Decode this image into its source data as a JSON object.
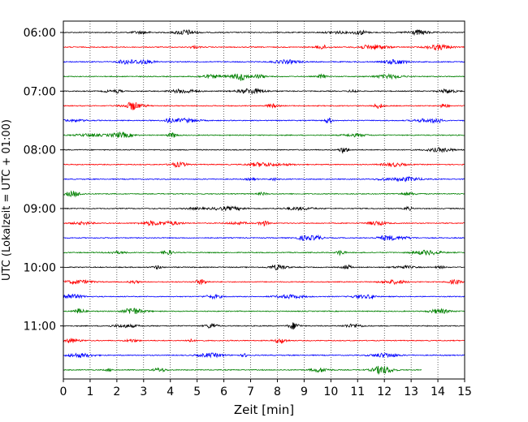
{
  "chart_data": {
    "type": "line",
    "title": "",
    "xlabel": "Zeit  [min]",
    "ylabel": "UTC (Lokalzeit = UTC + 01:00)",
    "xlim": [
      0,
      15
    ],
    "x_ticks": [
      "0",
      "1",
      "2",
      "3",
      "4",
      "5",
      "6",
      "7",
      "8",
      "9",
      "10",
      "11",
      "12",
      "13",
      "14",
      "15"
    ],
    "y_ticks": [
      "06:00",
      "07:00",
      "08:00",
      "09:00",
      "10:00",
      "11:00"
    ],
    "grid": "vertical dotted at each minute",
    "trace_interval_minutes": 15,
    "color_cycle": [
      "#000000",
      "#ff0000",
      "#0000ff",
      "#008000"
    ],
    "traces": [
      {
        "start": "06:00",
        "end_minute": 15,
        "color": "#000000"
      },
      {
        "start": "06:15",
        "end_minute": 15,
        "color": "#ff0000"
      },
      {
        "start": "06:30",
        "end_minute": 15,
        "color": "#0000ff"
      },
      {
        "start": "06:45",
        "end_minute": 15,
        "color": "#008000"
      },
      {
        "start": "07:00",
        "end_minute": 15,
        "color": "#000000"
      },
      {
        "start": "07:15",
        "end_minute": 15,
        "color": "#ff0000"
      },
      {
        "start": "07:30",
        "end_minute": 15,
        "color": "#0000ff"
      },
      {
        "start": "07:45",
        "end_minute": 15,
        "color": "#008000"
      },
      {
        "start": "08:00",
        "end_minute": 15,
        "color": "#000000"
      },
      {
        "start": "08:15",
        "end_minute": 15,
        "color": "#ff0000"
      },
      {
        "start": "08:30",
        "end_minute": 15,
        "color": "#0000ff"
      },
      {
        "start": "08:45",
        "end_minute": 15,
        "color": "#008000"
      },
      {
        "start": "09:00",
        "end_minute": 15,
        "color": "#000000"
      },
      {
        "start": "09:15",
        "end_minute": 15,
        "color": "#ff0000"
      },
      {
        "start": "09:30",
        "end_minute": 15,
        "color": "#0000ff"
      },
      {
        "start": "09:45",
        "end_minute": 15,
        "color": "#008000"
      },
      {
        "start": "10:00",
        "end_minute": 15,
        "color": "#000000"
      },
      {
        "start": "10:15",
        "end_minute": 15,
        "color": "#ff0000"
      },
      {
        "start": "10:30",
        "end_minute": 15,
        "color": "#0000ff"
      },
      {
        "start": "10:45",
        "end_minute": 15,
        "color": "#008000"
      },
      {
        "start": "11:00",
        "end_minute": 15,
        "color": "#000000"
      },
      {
        "start": "11:15",
        "end_minute": 15,
        "color": "#ff0000"
      },
      {
        "start": "11:30",
        "end_minute": 15,
        "color": "#0000ff"
      },
      {
        "start": "11:45",
        "end_minute": 13.4,
        "color": "#008000"
      }
    ]
  }
}
